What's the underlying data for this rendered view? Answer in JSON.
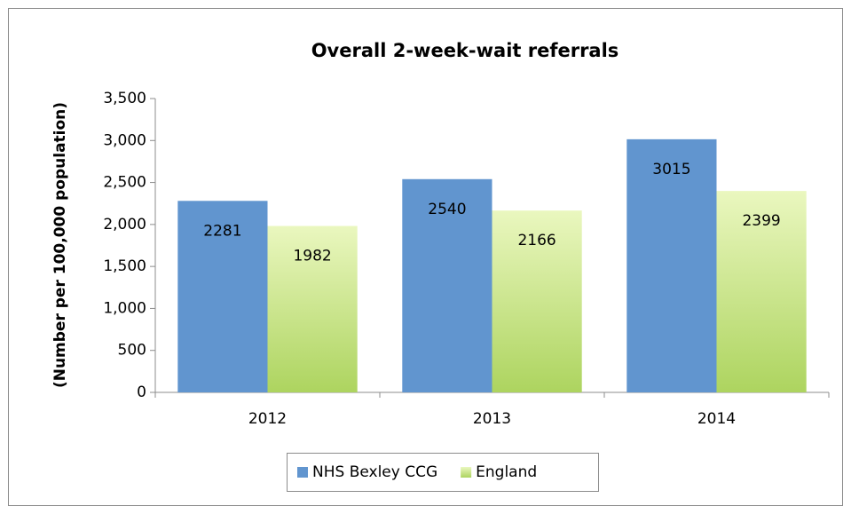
{
  "chart_data": {
    "type": "bar",
    "title": "Overall 2-week-wait referrals",
    "y_label": "(Number per 100,000 population)",
    "categories": [
      "2012",
      "2013",
      "2014"
    ],
    "series": [
      {
        "name": "NHS Bexley CCG",
        "color": "#6195cf",
        "values": [
          2281,
          2540,
          3015
        ]
      },
      {
        "name": "England",
        "color": "#add45f",
        "values": [
          1982,
          2166,
          2399
        ]
      }
    ],
    "ylim": [
      0,
      3500
    ],
    "yticks": [
      0,
      500,
      {
        "value": 1000,
        "label": "1,000"
      },
      {
        "value": 1500,
        "label": "1,500"
      },
      {
        "value": 2000,
        "label": "2,000"
      },
      {
        "value": 2500,
        "label": "2,500"
      },
      {
        "value": 3000,
        "label": "3,000"
      },
      {
        "value": 3500,
        "label": "3,500"
      }
    ],
    "legend": "bottom"
  }
}
